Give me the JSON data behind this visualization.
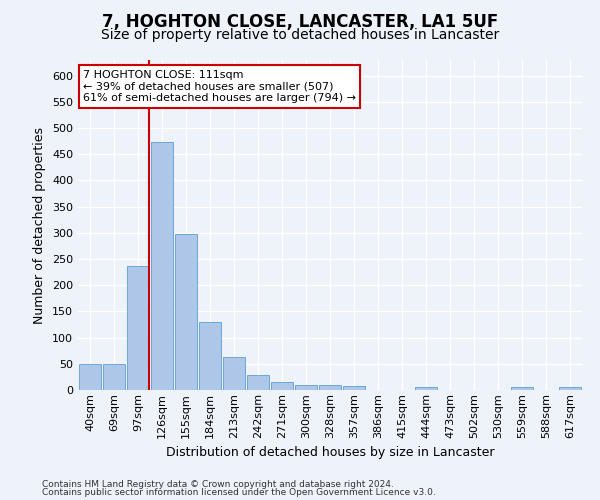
{
  "title1": "7, HOGHTON CLOSE, LANCASTER, LA1 5UF",
  "title2": "Size of property relative to detached houses in Lancaster",
  "xlabel": "Distribution of detached houses by size in Lancaster",
  "ylabel": "Number of detached properties",
  "categories": [
    "40sqm",
    "69sqm",
    "97sqm",
    "126sqm",
    "155sqm",
    "184sqm",
    "213sqm",
    "242sqm",
    "271sqm",
    "300sqm",
    "328sqm",
    "357sqm",
    "386sqm",
    "415sqm",
    "444sqm",
    "473sqm",
    "502sqm",
    "530sqm",
    "559sqm",
    "588sqm",
    "617sqm"
  ],
  "values": [
    50,
    50,
    237,
    473,
    298,
    130,
    63,
    28,
    16,
    9,
    10,
    8,
    0,
    0,
    5,
    0,
    0,
    0,
    5,
    0,
    5
  ],
  "bar_color": "#aec6e8",
  "bar_edge_color": "#5a9fd4",
  "vline_color": "#cc0000",
  "annotation_text": "7 HOGHTON CLOSE: 111sqm\n← 39% of detached houses are smaller (507)\n61% of semi-detached houses are larger (794) →",
  "annotation_box_color": "white",
  "annotation_box_edge": "#cc0000",
  "ylim": [
    0,
    630
  ],
  "background_color": "#eef2f9",
  "grid_color": "white",
  "footer1": "Contains HM Land Registry data © Crown copyright and database right 2024.",
  "footer2": "Contains public sector information licensed under the Open Government Licence v3.0.",
  "title1_fontsize": 12,
  "title2_fontsize": 10,
  "tick_fontsize": 8,
  "ylabel_fontsize": 9,
  "xlabel_fontsize": 9,
  "yticks": [
    0,
    50,
    100,
    150,
    200,
    250,
    300,
    350,
    400,
    450,
    500,
    550,
    600
  ]
}
